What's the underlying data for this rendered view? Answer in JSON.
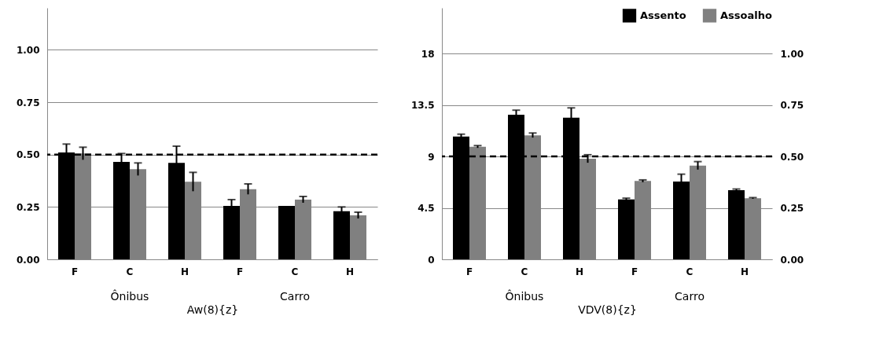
{
  "chart_data": [
    {
      "type": "bar",
      "xlabel": "Aw(8){z}",
      "categories": [
        "F",
        "C",
        "H",
        "F",
        "C",
        "H"
      ],
      "annotations": [
        "Ônibus",
        "Carro"
      ],
      "series": [
        {
          "color": "#000000",
          "values": [
            0.51,
            0.465,
            0.46,
            0.255,
            0.255,
            0.23
          ],
          "errors": [
            0.04,
            0.04,
            0.08,
            0.03,
            null,
            0.02
          ]
        },
        {
          "color": "#808080",
          "values": [
            0.505,
            0.43,
            0.37,
            0.335,
            0.285,
            0.21
          ],
          "errors": [
            0.03,
            0.03,
            0.045,
            0.025,
            0.015,
            0.015
          ]
        }
      ],
      "ylim": [
        0,
        1.2
      ],
      "yticks": [
        {
          "value": 0,
          "label": "0.00"
        },
        0.25,
        {
          "value": 0.5,
          "label": "0.50"
        },
        0.75,
        {
          "value": 1,
          "label": "1.00"
        }
      ],
      "grid": "y",
      "ref_lines": [
        {
          "axis": "y",
          "value": 0.5,
          "line_style": "dashed",
          "color": "#000000"
        }
      ]
    },
    {
      "type": "bar",
      "xlabel": "VDV(8){z}",
      "categories": [
        "F",
        "C",
        "H",
        "F",
        "C",
        "H"
      ],
      "annotations": [
        "Ônibus",
        "Carro"
      ],
      "series": [
        {
          "name": "Assento",
          "color": "#000000",
          "values": [
            10.75,
            12.65,
            12.4,
            5.25,
            6.8,
            6.05
          ],
          "errors": [
            0.2,
            0.4,
            0.85,
            0.1,
            0.65,
            0.1
          ]
        },
        {
          "name": "Assoalho",
          "color": "#808080",
          "values": [
            9.85,
            10.85,
            8.8,
            6.85,
            8.2,
            5.35
          ],
          "errors": [
            0.1,
            0.2,
            0.35,
            0.1,
            0.35,
            0.05
          ]
        }
      ],
      "ylim": [
        0,
        22
      ],
      "yticks": [
        0,
        4.5,
        9,
        13.5,
        18
      ],
      "y2lim": [
        0,
        1.222
      ],
      "y2ticks": [
        {
          "value": 0,
          "label": "0.00"
        },
        0.25,
        {
          "value": 0.5,
          "label": "0.50"
        },
        0.75,
        {
          "value": 1,
          "label": "1.00"
        }
      ],
      "grid": "y",
      "legend": "top right",
      "ref_lines": [
        {
          "axis": "y2",
          "value": 0.5,
          "line_style": "dashed",
          "color": "#000000"
        }
      ]
    }
  ]
}
